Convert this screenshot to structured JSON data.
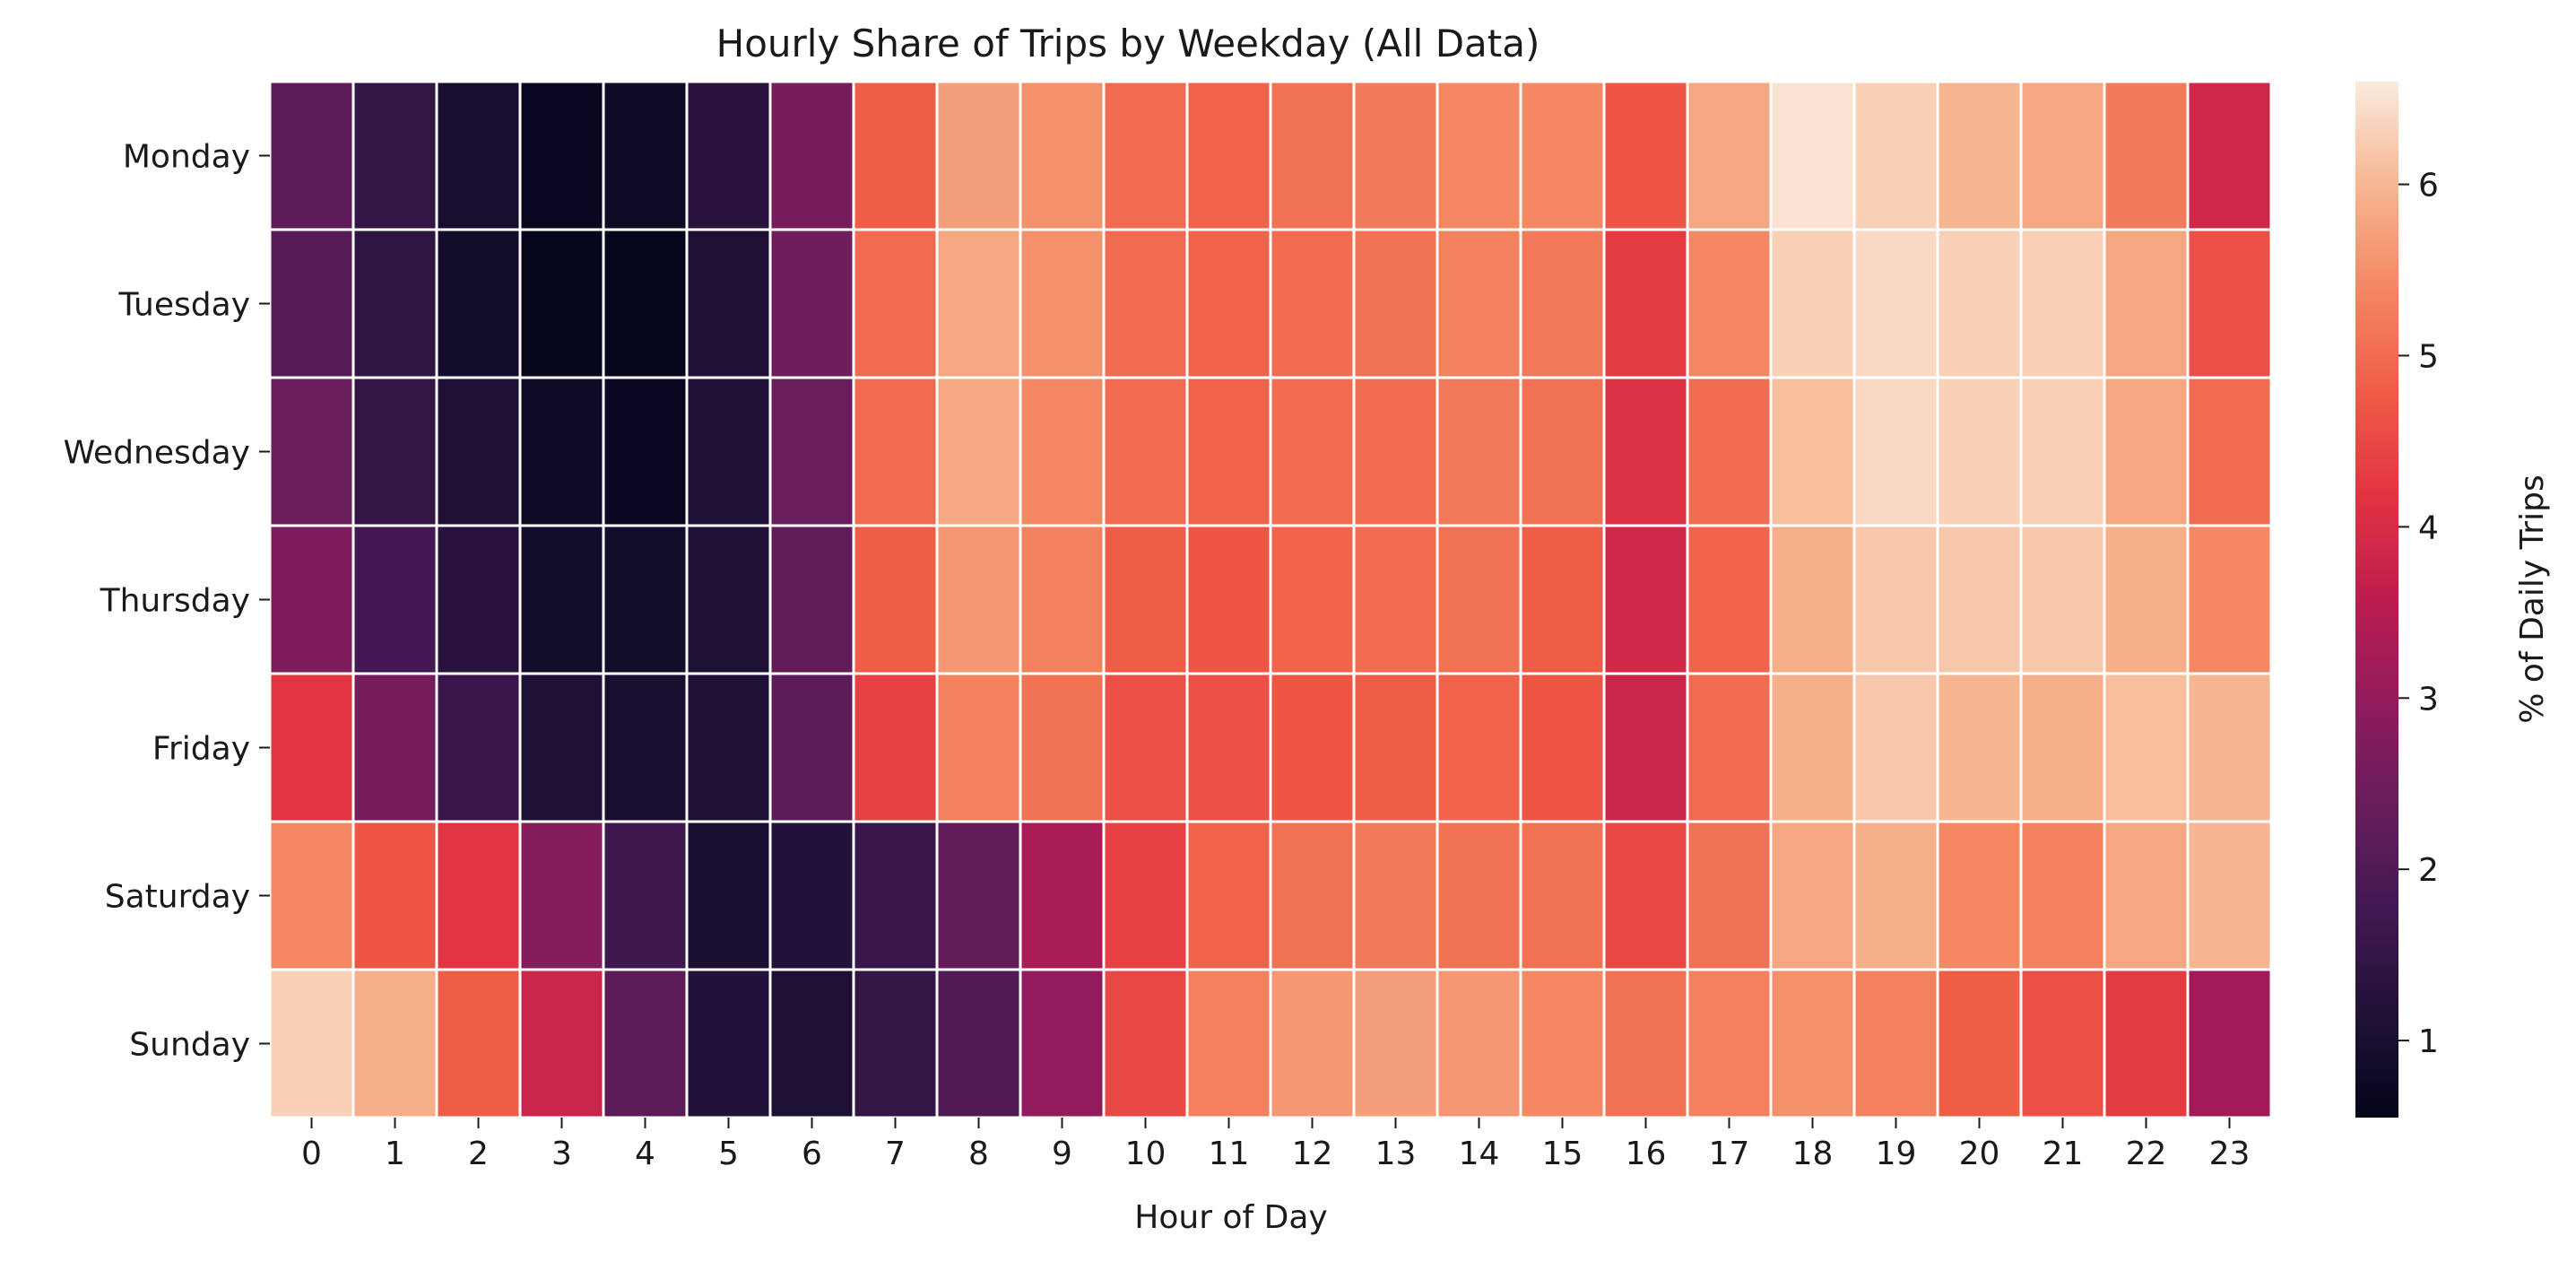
{
  "chart_data": {
    "type": "heatmap",
    "title": "Hourly Share of Trips by Weekday (All Data)",
    "xlabel": "Hour of Day",
    "ylabel": "",
    "x": [
      "0",
      "1",
      "2",
      "3",
      "4",
      "5",
      "6",
      "7",
      "8",
      "9",
      "10",
      "11",
      "12",
      "13",
      "14",
      "15",
      "16",
      "17",
      "18",
      "19",
      "20",
      "21",
      "22",
      "23"
    ],
    "y": [
      "Monday",
      "Tuesday",
      "Wednesday",
      "Thursday",
      "Friday",
      "Saturday",
      "Sunday"
    ],
    "values": [
      [
        2.2,
        1.5,
        1.0,
        0.7,
        0.8,
        1.3,
        2.6,
        4.8,
        5.7,
        5.5,
        5.0,
        4.9,
        5.1,
        5.2,
        5.4,
        5.4,
        4.7,
        5.8,
        6.5,
        6.3,
        6.0,
        5.8,
        5.2,
        3.9
      ],
      [
        2.1,
        1.4,
        0.9,
        0.6,
        0.6,
        1.1,
        2.5,
        5.0,
        5.8,
        5.5,
        5.0,
        4.9,
        5.0,
        5.1,
        5.3,
        5.2,
        4.3,
        5.4,
        6.3,
        6.4,
        6.3,
        6.3,
        5.8,
        4.6
      ],
      [
        2.4,
        1.5,
        1.1,
        0.8,
        0.7,
        1.1,
        2.4,
        5.0,
        5.8,
        5.4,
        5.0,
        4.9,
        5.0,
        5.0,
        5.2,
        5.1,
        4.1,
        5.0,
        6.1,
        6.4,
        6.3,
        6.3,
        5.8,
        5.0
      ],
      [
        2.7,
        1.8,
        1.3,
        0.9,
        0.9,
        1.1,
        2.3,
        4.8,
        5.6,
        5.3,
        4.8,
        4.7,
        4.9,
        5.0,
        5.1,
        4.8,
        3.9,
        4.9,
        5.9,
        6.2,
        6.2,
        6.2,
        5.9,
        5.4
      ],
      [
        4.2,
        2.6,
        1.6,
        1.1,
        1.0,
        1.1,
        2.2,
        4.4,
        5.3,
        5.1,
        4.6,
        4.6,
        4.7,
        4.8,
        4.9,
        4.7,
        3.8,
        5.0,
        5.9,
        6.2,
        6.0,
        5.9,
        6.1,
        6.0
      ],
      [
        5.4,
        4.7,
        4.2,
        2.8,
        1.7,
        1.0,
        1.2,
        1.6,
        2.3,
        3.3,
        4.4,
        4.9,
        5.1,
        5.2,
        5.1,
        5.1,
        4.5,
        5.1,
        5.8,
        5.9,
        5.4,
        5.3,
        5.8,
        6.0
      ],
      [
        6.3,
        5.9,
        4.8,
        3.8,
        2.2,
        1.2,
        1.1,
        1.5,
        2.0,
        3.0,
        4.5,
        5.3,
        5.6,
        5.7,
        5.6,
        5.4,
        5.1,
        5.3,
        5.5,
        5.3,
        4.8,
        4.6,
        4.3,
        3.2
      ]
    ],
    "colorbar": {
      "label": "% of Daily Trips",
      "min": 0.55,
      "max": 6.6,
      "ticks": [
        1,
        2,
        3,
        4,
        5,
        6
      ],
      "colormap": "rocket"
    },
    "cell_border_color": "#ffffff"
  }
}
